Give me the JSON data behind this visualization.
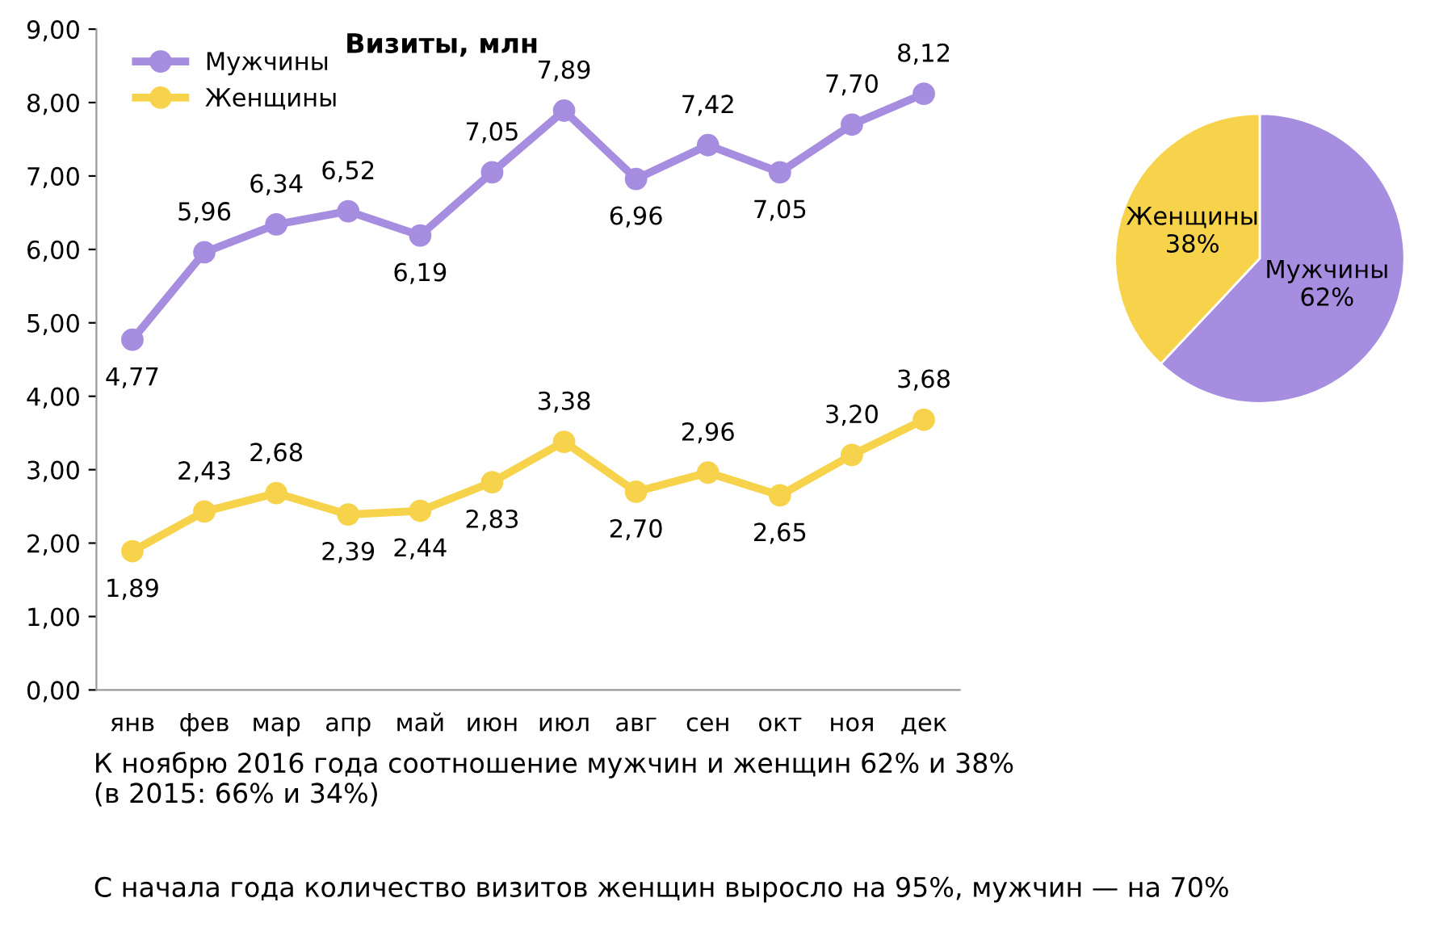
{
  "chart_data": [
    {
      "type": "line",
      "title": "Визиты, млн",
      "categories": [
        "янв",
        "фев",
        "мар",
        "апр",
        "май",
        "июн",
        "июл",
        "авг",
        "сен",
        "окт",
        "ноя",
        "дек"
      ],
      "series": [
        {
          "name": "Мужчины",
          "color": "#a68de0",
          "values": [
            4.77,
            5.96,
            6.34,
            6.52,
            6.19,
            7.05,
            7.89,
            6.96,
            7.42,
            7.05,
            7.7,
            8.12
          ],
          "value_labels": [
            "4,77",
            "5,96",
            "6,34",
            "6,52",
            "6,19",
            "7,05",
            "7,89",
            "6,96",
            "7,42",
            "7,05",
            "7,70",
            "8,12"
          ]
        },
        {
          "name": "Женщины",
          "color": "#f7d34c",
          "values": [
            1.89,
            2.43,
            2.68,
            2.39,
            2.44,
            2.83,
            3.38,
            2.7,
            2.96,
            2.65,
            3.2,
            3.68
          ],
          "value_labels": [
            "1,89",
            "2,43",
            "2,68",
            "2,39",
            "2,44",
            "2,83",
            "3,38",
            "2,70",
            "2,96",
            "2,65",
            "3,20",
            "3,68"
          ]
        }
      ],
      "ylim": [
        0,
        9
      ],
      "yticks": [
        {
          "value": 0,
          "label": "0,00"
        },
        {
          "value": 1,
          "label": "1,00"
        },
        {
          "value": 2,
          "label": "2,00"
        },
        {
          "value": 3,
          "label": "3,00"
        },
        {
          "value": 4,
          "label": "4,00"
        },
        {
          "value": 5,
          "label": "5,00"
        },
        {
          "value": 6,
          "label": "6,00"
        },
        {
          "value": 7,
          "label": "7,00"
        },
        {
          "value": 8,
          "label": "8,00"
        },
        {
          "value": 9,
          "label": "9,00"
        }
      ],
      "marker": "circle",
      "line_style": "solid",
      "grid": false,
      "legend": "top left",
      "annotations": [
        "К ноябрю 2016 года соотношение мужчин и женщин 62% и 38%\n(в 2015: 66% и 34%)",
        "С начала года количество визитов женщин выросло на 95%, мужчин — на 70%"
      ]
    },
    {
      "type": "pie",
      "categories": [
        "Мужчины",
        "Женщины"
      ],
      "values": [
        62,
        38
      ],
      "colors": [
        "#a68de0",
        "#f7d34c"
      ],
      "value_labels": [
        "62%",
        "38%"
      ]
    }
  ]
}
